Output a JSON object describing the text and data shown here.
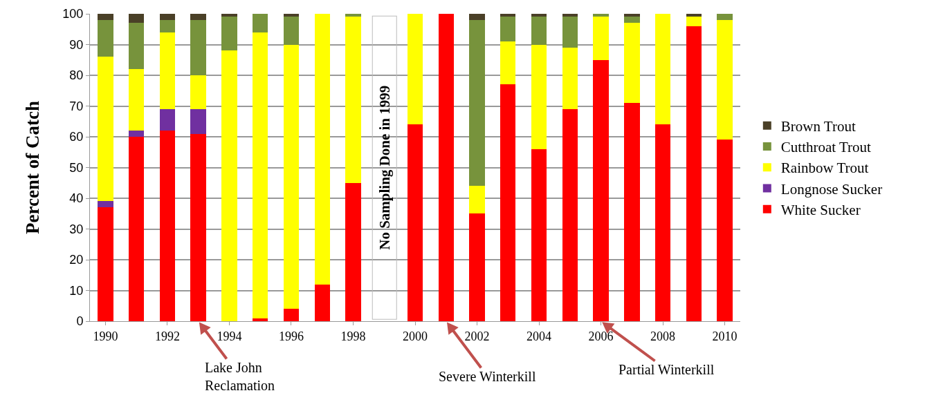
{
  "chart_data": {
    "type": "bar",
    "stacked": true,
    "ylabel": "Percent of Catch",
    "x": [
      1990,
      1991,
      1992,
      1993,
      1994,
      1995,
      1996,
      1997,
      1998,
      1999,
      2000,
      2001,
      2002,
      2003,
      2004,
      2005,
      2006,
      2007,
      2008,
      2009,
      2010
    ],
    "xlim": [
      1989.5,
      2010.5
    ],
    "xticks": [
      1990,
      1992,
      1994,
      1996,
      1998,
      2000,
      2002,
      2004,
      2006,
      2008,
      2010
    ],
    "ylim": [
      0,
      100
    ],
    "yticks": [
      0,
      10,
      20,
      30,
      40,
      50,
      60,
      70,
      80,
      90,
      100
    ],
    "grid": "y",
    "legend": "right",
    "series": [
      {
        "name": "White Sucker",
        "color": "#ff0000",
        "values": [
          37,
          60,
          62,
          61,
          0,
          1,
          4,
          12,
          45,
          null,
          64,
          100,
          35,
          77,
          56,
          69,
          85,
          71,
          64,
          96,
          59
        ]
      },
      {
        "name": "Longnose Sucker",
        "color": "#7030a0",
        "values": [
          2,
          2,
          7,
          8,
          0,
          0,
          0,
          0,
          0,
          null,
          0,
          0,
          0,
          0,
          0,
          0,
          0,
          0,
          0,
          0,
          0
        ]
      },
      {
        "name": "Rainbow Trout",
        "color": "#ffff00",
        "values": [
          47,
          20,
          25,
          11,
          88,
          93,
          86,
          88,
          54,
          null,
          36,
          0,
          9,
          14,
          34,
          20,
          14,
          26,
          36,
          3,
          39
        ]
      },
      {
        "name": "Cutthroat Trout",
        "color": "#77933c",
        "values": [
          12,
          15,
          4,
          18,
          11,
          6,
          9,
          0,
          1,
          null,
          0,
          0,
          54,
          8,
          9,
          10,
          1,
          2,
          0,
          0,
          2
        ]
      },
      {
        "name": "Brown Trout",
        "color": "#4a4027",
        "values": [
          2,
          3,
          2,
          2,
          1,
          0,
          1,
          0,
          0,
          null,
          0,
          0,
          2,
          1,
          1,
          1,
          0,
          1,
          0,
          1,
          0
        ]
      }
    ],
    "annotations": [
      "No Sampling Done in 1999",
      {
        "text": "Lake John\nReclamation",
        "x": 1993,
        "y": 0
      },
      {
        "text": "Severe Winterkill",
        "x": 2001,
        "y": 0
      },
      {
        "text": "Partial Winterkill",
        "x": 2006,
        "y": 0
      }
    ]
  }
}
